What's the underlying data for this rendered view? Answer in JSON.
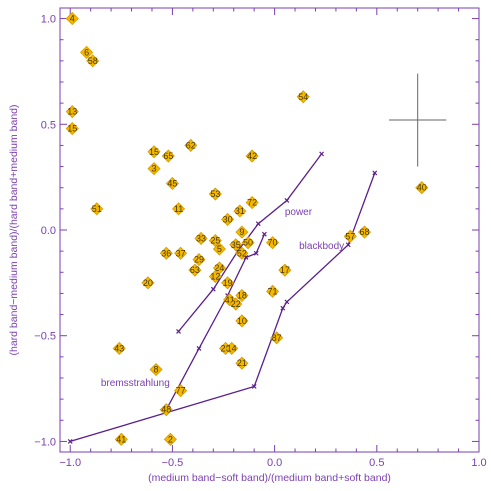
{
  "chart_data": {
    "type": "scatter",
    "title": "",
    "xlabel": "(medium band−soft band)/(medium band+soft band)",
    "ylabel": "(hard band−medium band)/(hard band+medium band)",
    "xlim": [
      -1.05,
      1.0
    ],
    "ylim": [
      -1.05,
      1.05
    ],
    "x_ticks": [
      -1.0,
      -0.5,
      0.0,
      0.5,
      1.0
    ],
    "x_tick_labels": [
      "−1.0",
      "−0.5",
      "0.0",
      "0.5",
      "1.0"
    ],
    "y_ticks": [
      -1.0,
      -0.5,
      0.0,
      0.5,
      1.0
    ],
    "y_tick_labels": [
      "−1.0",
      "−0.5",
      "0.0",
      "0.5",
      "1.0"
    ],
    "grid": false,
    "colors": {
      "axis": "#7b3fb0",
      "marker_fill": "#f5b800",
      "marker_stroke": "#d89a00",
      "source_text": "#4a3a00",
      "model_line": "#5a1f8a",
      "error_cross": "#666666"
    },
    "points": [
      {
        "label": "4",
        "x": -0.99,
        "y": 1.0
      },
      {
        "label": "6",
        "x": -0.92,
        "y": 0.84
      },
      {
        "label": "58",
        "x": -0.89,
        "y": 0.8
      },
      {
        "label": "13",
        "x": -0.99,
        "y": 0.56
      },
      {
        "label": "15",
        "x": -0.99,
        "y": 0.48
      },
      {
        "label": "51",
        "x": -0.87,
        "y": 0.1
      },
      {
        "label": "15",
        "x": -0.59,
        "y": 0.37
      },
      {
        "label": "65",
        "x": -0.52,
        "y": 0.35
      },
      {
        "label": "62",
        "x": -0.41,
        "y": 0.4
      },
      {
        "label": "3",
        "x": -0.59,
        "y": 0.29
      },
      {
        "label": "45",
        "x": -0.5,
        "y": 0.22
      },
      {
        "label": "42",
        "x": -0.11,
        "y": 0.35
      },
      {
        "label": "54",
        "x": 0.14,
        "y": 0.63
      },
      {
        "label": "53",
        "x": -0.29,
        "y": 0.17
      },
      {
        "label": "72",
        "x": -0.11,
        "y": 0.13
      },
      {
        "label": "11",
        "x": -0.47,
        "y": 0.1
      },
      {
        "label": "31",
        "x": -0.17,
        "y": 0.09
      },
      {
        "label": "30",
        "x": -0.23,
        "y": 0.05
      },
      {
        "label": "9",
        "x": -0.16,
        "y": -0.01
      },
      {
        "label": "33",
        "x": -0.36,
        "y": -0.04
      },
      {
        "label": "25",
        "x": -0.29,
        "y": -0.05
      },
      {
        "label": "35",
        "x": -0.19,
        "y": -0.07
      },
      {
        "label": "50",
        "x": -0.13,
        "y": -0.06
      },
      {
        "label": "70",
        "x": -0.01,
        "y": -0.06
      },
      {
        "label": "5",
        "x": -0.27,
        "y": -0.09
      },
      {
        "label": "52",
        "x": -0.16,
        "y": -0.11
      },
      {
        "label": "36",
        "x": -0.53,
        "y": -0.11
      },
      {
        "label": "37",
        "x": -0.46,
        "y": -0.11
      },
      {
        "label": "29",
        "x": -0.37,
        "y": -0.14
      },
      {
        "label": "24",
        "x": -0.27,
        "y": -0.18
      },
      {
        "label": "17",
        "x": 0.05,
        "y": -0.19
      },
      {
        "label": "63",
        "x": -0.39,
        "y": -0.19
      },
      {
        "label": "20",
        "x": -0.62,
        "y": -0.25
      },
      {
        "label": "12",
        "x": -0.29,
        "y": -0.22
      },
      {
        "label": "19",
        "x": -0.23,
        "y": -0.25
      },
      {
        "label": "71",
        "x": -0.01,
        "y": -0.29
      },
      {
        "label": "18",
        "x": -0.16,
        "y": -0.31
      },
      {
        "label": "41",
        "x": -0.22,
        "y": -0.33
      },
      {
        "label": "22",
        "x": -0.19,
        "y": -0.35
      },
      {
        "label": "10",
        "x": -0.16,
        "y": -0.43
      },
      {
        "label": "87",
        "x": 0.01,
        "y": -0.51
      },
      {
        "label": "26",
        "x": -0.24,
        "y": -0.56
      },
      {
        "label": "14",
        "x": -0.21,
        "y": -0.56
      },
      {
        "label": "21",
        "x": -0.16,
        "y": -0.63
      },
      {
        "label": "43",
        "x": -0.76,
        "y": -0.56
      },
      {
        "label": "8",
        "x": -0.58,
        "y": -0.66
      },
      {
        "label": "77",
        "x": -0.46,
        "y": -0.76
      },
      {
        "label": "48",
        "x": -0.53,
        "y": -0.85
      },
      {
        "label": "41",
        "x": -0.75,
        "y": -0.99
      },
      {
        "label": "2",
        "x": -0.51,
        "y": -0.99
      },
      {
        "label": "57",
        "x": 0.37,
        "y": -0.03
      },
      {
        "label": "68",
        "x": 0.44,
        "y": -0.01
      },
      {
        "label": "40",
        "x": 0.72,
        "y": 0.2
      }
    ],
    "model_curves": [
      {
        "name": "power",
        "points": [
          [
            -0.47,
            -0.48
          ],
          [
            -0.3,
            -0.28
          ],
          [
            -0.18,
            -0.1
          ],
          [
            -0.08,
            0.03
          ],
          [
            0.06,
            0.14
          ],
          [
            0.23,
            0.36
          ]
        ]
      },
      {
        "name": "blackbody",
        "points": [
          [
            -0.53,
            -0.85
          ],
          [
            -0.37,
            -0.56
          ],
          [
            -0.23,
            -0.31
          ],
          [
            -0.14,
            -0.13
          ],
          [
            -0.09,
            -0.11
          ],
          [
            -0.05,
            -0.02
          ]
        ]
      },
      {
        "name": "bremsstrahlung",
        "points": [
          [
            -1.0,
            -1.0
          ],
          [
            -0.1,
            -0.74
          ],
          [
            0.04,
            -0.37
          ],
          [
            0.06,
            -0.34
          ],
          [
            0.36,
            -0.07
          ],
          [
            0.49,
            0.27
          ]
        ]
      }
    ],
    "annotations": [
      {
        "text": "power",
        "x": 0.05,
        "y": 0.09
      },
      {
        "text": "blackbody",
        "x": 0.12,
        "y": -0.07
      },
      {
        "text": "bremsstrahlung",
        "x": -0.85,
        "y": -0.72
      }
    ],
    "error_bar": {
      "x": 0.7,
      "y": 0.52,
      "xerr": 0.14,
      "yerr": 0.22
    }
  }
}
